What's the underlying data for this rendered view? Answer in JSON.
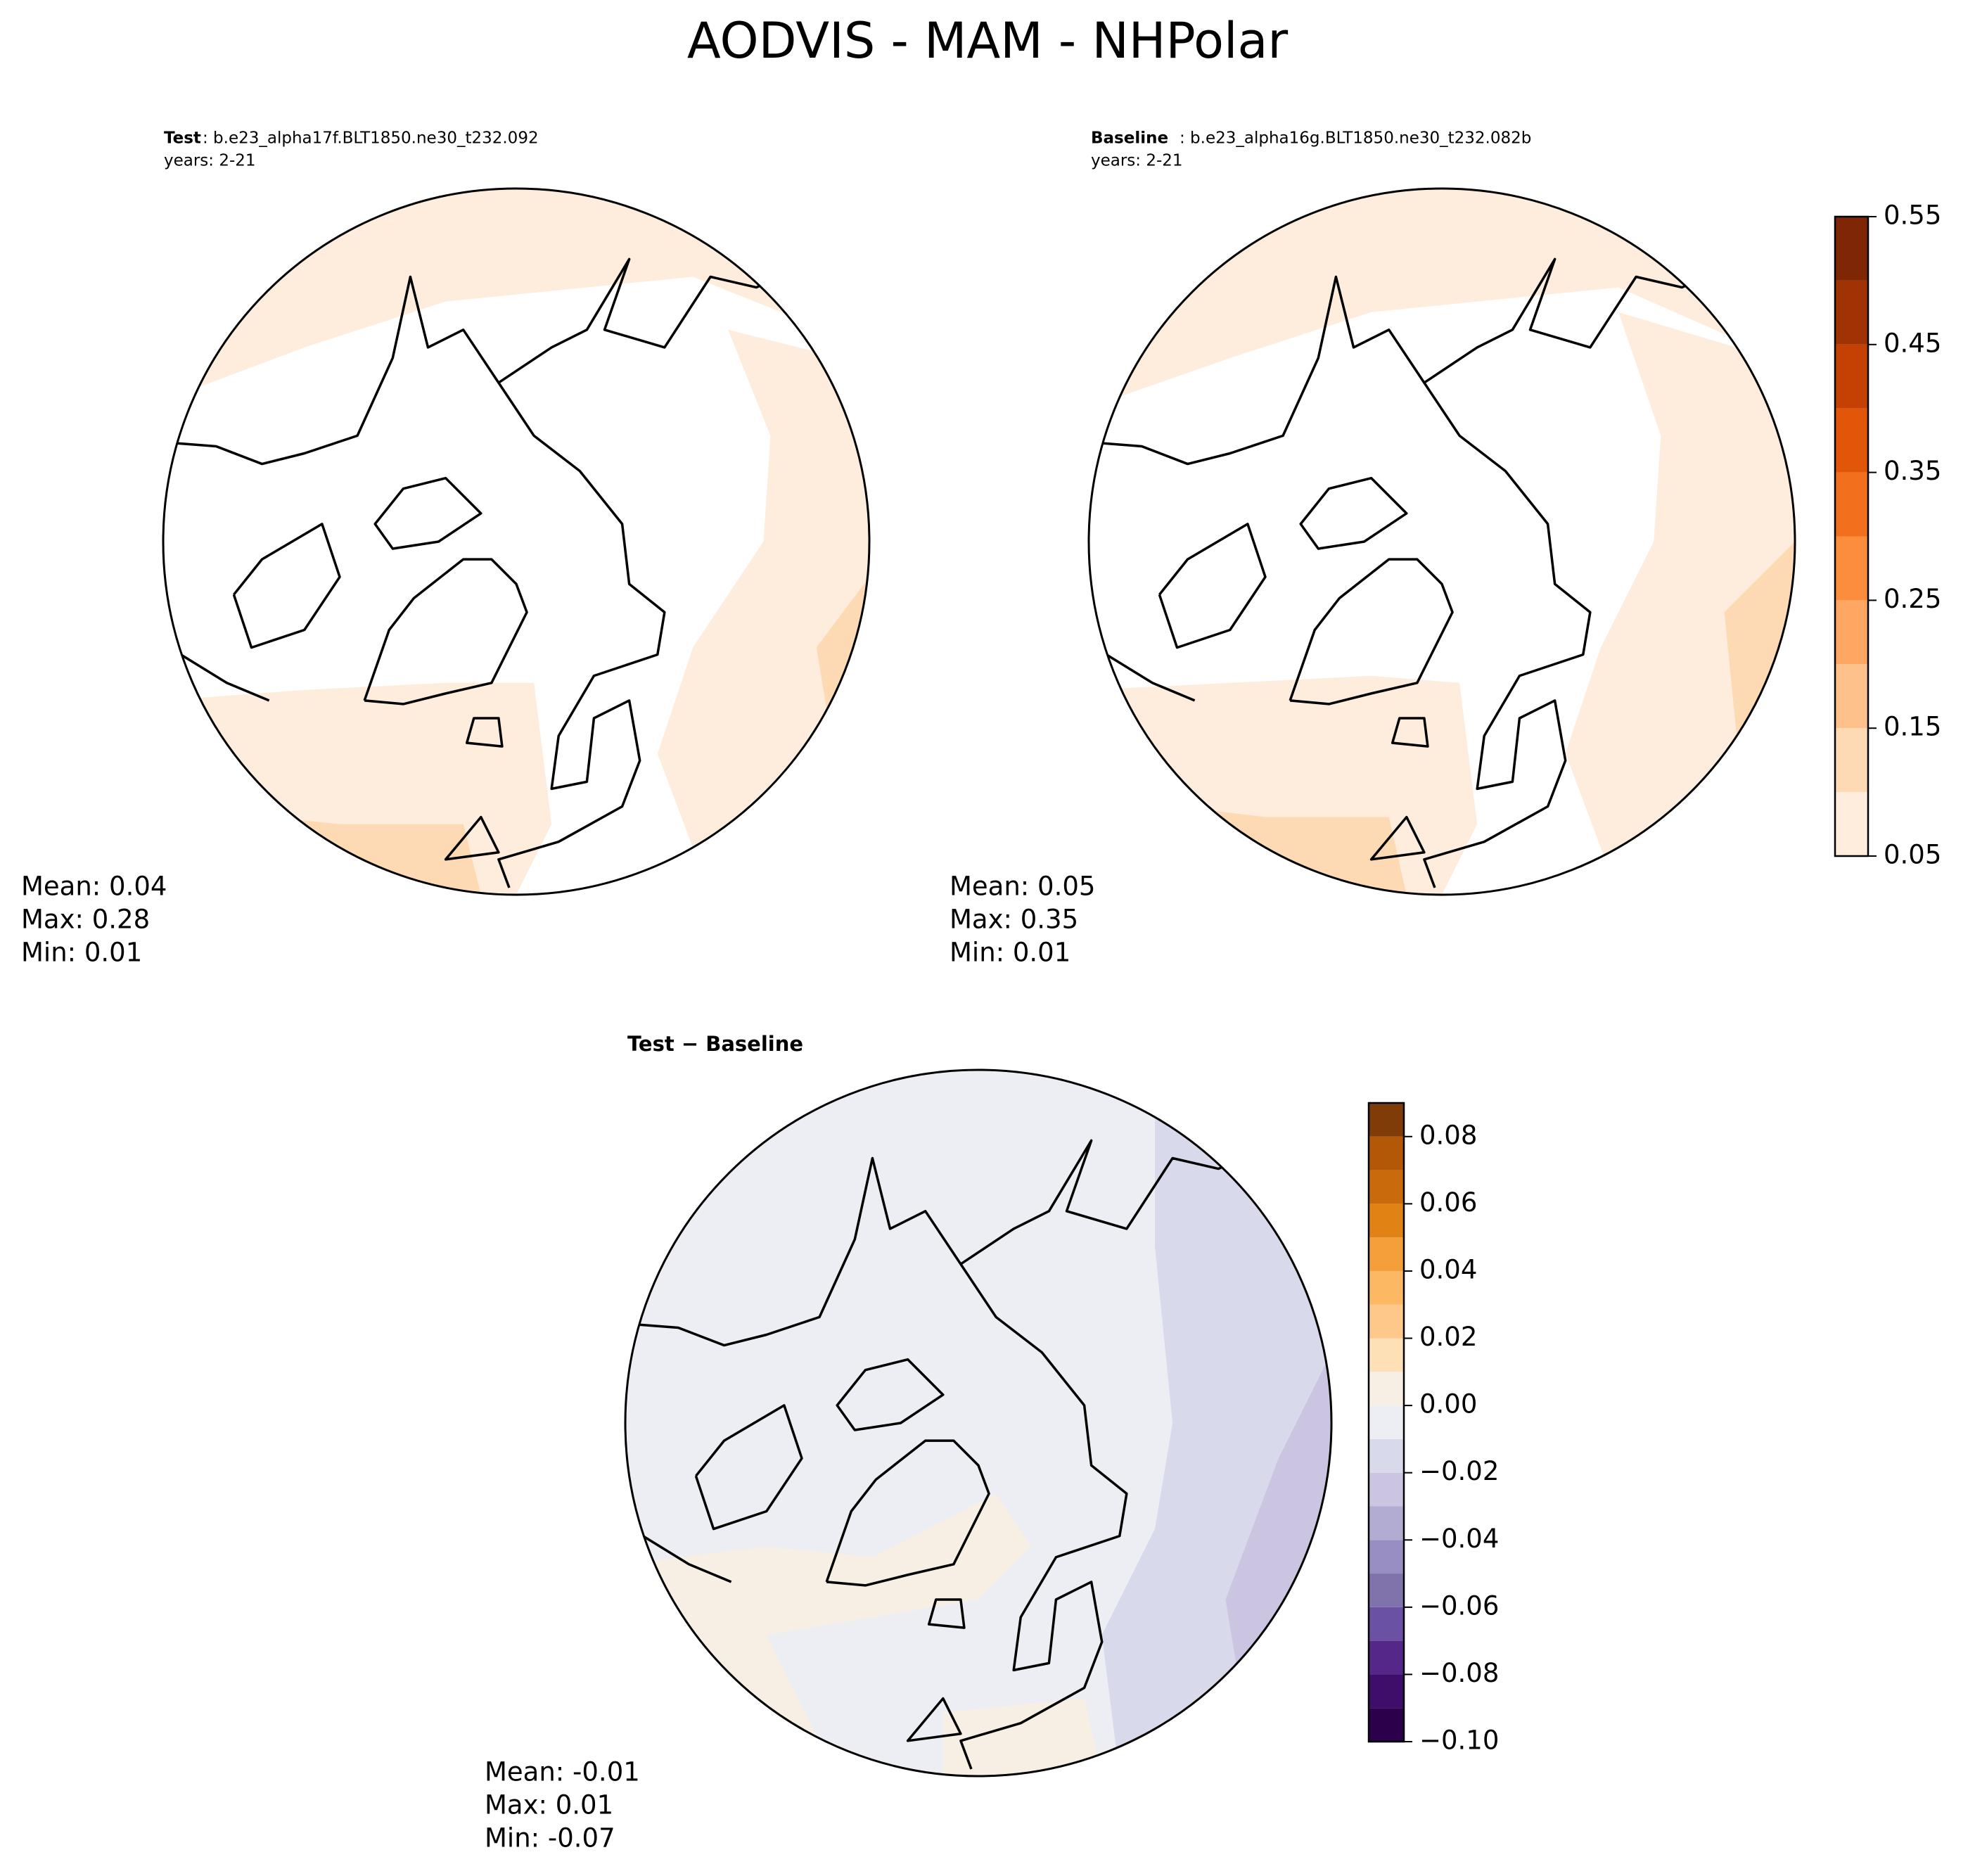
{
  "title": "AODVIS - MAM - NHPolar",
  "panels": [
    {
      "label": "Test",
      "case": ": b.e23_alpha17f.BLT1850.ne30_t232.092",
      "years": "years: 2-21",
      "stats": [
        "Mean:  0.04",
        "Max:  0.28",
        "Min:  0.01"
      ]
    },
    {
      "label": "Baseline",
      "case": ": b.e23_alpha16g.BLT1850.ne30_t232.082b",
      "years": "years: 2-21",
      "stats": [
        "Mean:  0.05",
        "Max:  0.35",
        "Min:  0.01"
      ]
    },
    {
      "label": "Test − Baseline",
      "stats": [
        "Mean: -0.01",
        "Max:  0.01",
        "Min: -0.07"
      ]
    }
  ],
  "colorbars": [
    {
      "levels": [
        0.05,
        0.1,
        0.15,
        0.2,
        0.25,
        0.3,
        0.35,
        0.4,
        0.45,
        0.5,
        0.55
      ],
      "colors": [
        "#feeddc",
        "#fdd9b4",
        "#fdc28c",
        "#fda762",
        "#fb8d3d",
        "#f2701d",
        "#e25609",
        "#c44103",
        "#9f3303",
        "#7f2704"
      ],
      "ticks": [
        0.05,
        0.15,
        0.25,
        0.35,
        0.45,
        0.55
      ]
    },
    {
      "levels": [
        -0.1,
        -0.09,
        -0.08,
        -0.07,
        -0.06,
        -0.05,
        -0.04,
        -0.03,
        -0.02,
        -0.01,
        0,
        0.01,
        0.02,
        0.03,
        0.04,
        0.05,
        0.06,
        0.07,
        0.08,
        0.09
      ],
      "colors": [
        "#2d004b",
        "#3f0e6b",
        "#542788",
        "#6a51a3",
        "#8073ac",
        "#998ec3",
        "#b2abd2",
        "#cbc5e2",
        "#d8daeb",
        "#edeef3",
        "#f7efe3",
        "#fde0b6",
        "#fdc98b",
        "#fdb863",
        "#f59f3b",
        "#e08214",
        "#c96b0c",
        "#b35806",
        "#7f3b08"
      ],
      "ticks": [
        {
          "value": -0.1,
          "label": "−0.10"
        },
        {
          "value": -0.08,
          "label": "−0.08"
        },
        {
          "value": -0.06,
          "label": "−0.06"
        },
        {
          "value": -0.04,
          "label": "−0.04"
        },
        {
          "value": -0.02,
          "label": "−0.02"
        },
        {
          "value": 0,
          "label": "0.00"
        },
        0.02,
        0.04,
        0.06,
        0.08
      ]
    }
  ]
}
